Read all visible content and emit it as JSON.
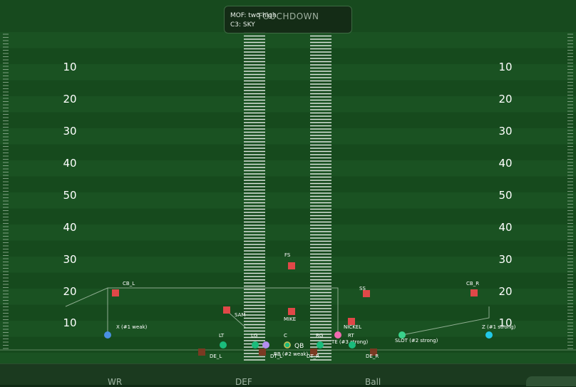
{
  "header": {
    "title": "TOUCHDOWN",
    "mof": "MOF: two-high",
    "coverage": "C3: SKY"
  },
  "yard_labels": {
    "left": [
      "10",
      "20",
      "30",
      "40",
      "50",
      "40",
      "30",
      "20",
      "10"
    ],
    "right": [
      "10",
      "20",
      "30",
      "40",
      "50",
      "40",
      "30",
      "20",
      "10"
    ]
  },
  "offense": [
    {
      "id": "wr-x",
      "label": "X (#1 weak)",
      "color": "#4a90e2"
    },
    {
      "id": "lt",
      "label": "LT",
      "color": "#1abc7c"
    },
    {
      "id": "lg",
      "label": "LG",
      "color": "#1abc7c"
    },
    {
      "id": "rb",
      "label": "RB (#2 weak)",
      "color": "#b48ef0"
    },
    {
      "id": "c",
      "label": "C",
      "color": "#1abc7c"
    },
    {
      "id": "qb",
      "label": "QB",
      "color": "#d4b64a"
    },
    {
      "id": "rg",
      "label": "RG",
      "color": "#1abc7c"
    },
    {
      "id": "te",
      "label": "TE (#3 strong)",
      "color": "#f06ab0"
    },
    {
      "id": "rt",
      "label": "RT",
      "color": "#1abc7c"
    },
    {
      "id": "slot",
      "label": "SLOT (#2 strong)",
      "color": "#3ad28c"
    },
    {
      "id": "wr-z",
      "label": "Z (#1 strong)",
      "color": "#22c8e8"
    }
  ],
  "defense": [
    {
      "id": "cb-l",
      "label": "CB_L",
      "color": "#e04848"
    },
    {
      "id": "fs",
      "label": "FS",
      "color": "#e04848"
    },
    {
      "id": "sam",
      "label": "SAM",
      "color": "#e04848"
    },
    {
      "id": "mike",
      "label": "MIKE",
      "color": "#e04848"
    },
    {
      "id": "ss",
      "label": "SS",
      "color": "#e04848"
    },
    {
      "id": "nickel",
      "label": "NICKEL",
      "color": "#e04848"
    },
    {
      "id": "cb-r",
      "label": "CB_R",
      "color": "#e04848"
    },
    {
      "id": "de-l",
      "label": "DE_L",
      "color": "#7a3a22"
    },
    {
      "id": "dt-l",
      "label": "DT_L",
      "color": "#7a3a22"
    },
    {
      "id": "dt-r",
      "label": "DT_R",
      "color": "#7a3a22"
    },
    {
      "id": "de-r",
      "label": "DE_R",
      "color": "#7a3a22"
    }
  ],
  "bottom_tabs": [
    "WR",
    "DEF",
    "Ball"
  ]
}
